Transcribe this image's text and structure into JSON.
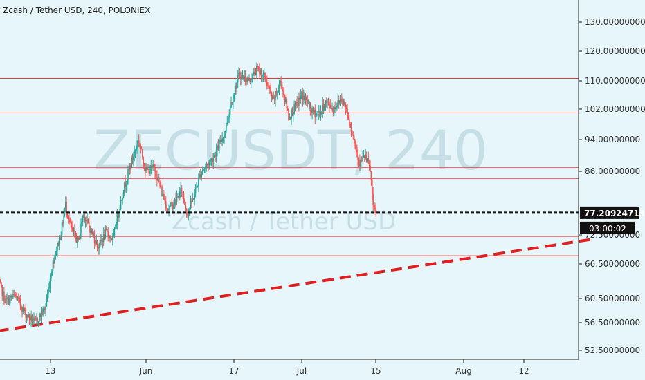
{
  "header": {
    "title": "Zcash / Tether USD, 240, POLONIEX"
  },
  "watermark": {
    "symbol": "ZECUSDT, 240",
    "name": "Zcash / Tether USD"
  },
  "colors": {
    "background": "#e6f6fb",
    "up": "#26a69a",
    "down": "#ef5350",
    "level": "#e53935",
    "trend": "#e02020",
    "axis": "#222222"
  },
  "price_badge": {
    "price": "77.20924713",
    "countdown": "03:00:02"
  },
  "chart_data": {
    "type": "candlestick",
    "title": "Zcash / Tether USD, 240, POLONIEX",
    "ylim": [
      51.5,
      131
    ],
    "y_ticks": [
      "130.00000000",
      "120.00000000",
      "110.00000000",
      "102.00000000",
      "94.00000000",
      "86.00000000",
      "72.50000000",
      "66.50000000",
      "60.50000000",
      "56.50000000",
      "52.50000000"
    ],
    "y_tick_values": [
      130,
      120,
      110,
      102,
      94,
      86,
      72.5,
      66.5,
      60.5,
      56.5,
      52.5
    ],
    "x_ticks": [
      "13",
      "Jun",
      "17",
      "Jul",
      "15",
      "Aug",
      "12"
    ],
    "x_tick_days": [
      13,
      32,
      48,
      61,
      75,
      92,
      103
    ],
    "x_range_days": [
      2.5,
      116
    ],
    "levels": [
      110.8,
      101,
      87,
      84.5,
      72.2,
      68.2
    ],
    "current_price": 77.20924713,
    "trendline": {
      "from": [
        2.5,
        55.3
      ],
      "to": [
        116,
        71.7
      ]
    },
    "anchors": [
      [
        2.5,
        64
      ],
      [
        4,
        60
      ],
      [
        6,
        61
      ],
      [
        8,
        58
      ],
      [
        10,
        56.5
      ],
      [
        12,
        59
      ],
      [
        13.5,
        67
      ],
      [
        15,
        72.5
      ],
      [
        16,
        79
      ],
      [
        17,
        74
      ],
      [
        18.5,
        71
      ],
      [
        19.5,
        77
      ],
      [
        21,
        73.5
      ],
      [
        22.5,
        70
      ],
      [
        24,
        73
      ],
      [
        25.5,
        71.5
      ],
      [
        26,
        75
      ],
      [
        27.5,
        82
      ],
      [
        28.5,
        86
      ],
      [
        30.5,
        94
      ],
      [
        32,
        86
      ],
      [
        33.5,
        87
      ],
      [
        35,
        81
      ],
      [
        36,
        78
      ],
      [
        37,
        79
      ],
      [
        38.5,
        82
      ],
      [
        39.5,
        77
      ],
      [
        40.5,
        80
      ],
      [
        42,
        86
      ],
      [
        44,
        89
      ],
      [
        45.5,
        93
      ],
      [
        46.5,
        97
      ],
      [
        47.5,
        104
      ],
      [
        49,
        112
      ],
      [
        51,
        110
      ],
      [
        52.5,
        114
      ],
      [
        54,
        111
      ],
      [
        55.5,
        104
      ],
      [
        57,
        110
      ],
      [
        58.5,
        100
      ],
      [
        60,
        103
      ],
      [
        61,
        106
      ],
      [
        62,
        104
      ],
      [
        63,
        101
      ],
      [
        64.5,
        101
      ],
      [
        65.5,
        104
      ],
      [
        67,
        102
      ],
      [
        68.5,
        105
      ],
      [
        69.5,
        102
      ],
      [
        70.5,
        96
      ],
      [
        72,
        88
      ],
      [
        73,
        90
      ],
      [
        74,
        86
      ],
      [
        74.5,
        78
      ],
      [
        75,
        77.2
      ]
    ]
  }
}
